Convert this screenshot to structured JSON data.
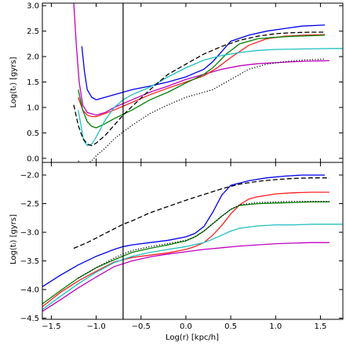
{
  "chart_data": [
    {
      "type": "line",
      "panel": "top",
      "xlabel": "",
      "ylabel": "Log(tₜ) [gyrs]",
      "xlim": [
        -1.6,
        1.75
      ],
      "ylim": [
        -0.08,
        3.05
      ],
      "xticks": [],
      "yticks": [
        0.0,
        0.5,
        1.0,
        1.5,
        2.0,
        2.5,
        3.0
      ],
      "ytick_labels": [
        "0.0",
        "0.5",
        "1.0",
        "1.5",
        "2.0",
        "2.5",
        "3.0"
      ],
      "vline_x": -0.7,
      "series": [
        {
          "color": "#0000ee",
          "dash": "solid",
          "x": [
            -1.16,
            -1.13,
            -1.1,
            -1.05,
            -1.0,
            -0.9,
            -0.8,
            -0.6,
            -0.4,
            -0.2,
            0.0,
            0.2,
            0.3,
            0.4,
            0.5,
            0.7,
            0.9,
            1.1,
            1.3,
            1.55
          ],
          "y": [
            2.2,
            1.7,
            1.35,
            1.2,
            1.15,
            1.2,
            1.25,
            1.35,
            1.42,
            1.5,
            1.6,
            1.75,
            1.9,
            2.1,
            2.3,
            2.42,
            2.5,
            2.55,
            2.6,
            2.62
          ]
        },
        {
          "color": "#c000c0",
          "dash": "solid",
          "x": [
            -1.25,
            -1.22,
            -1.19,
            -1.15,
            -1.1,
            -1.0,
            -0.9,
            -0.8,
            -0.6,
            -0.4,
            -0.2,
            0.0,
            0.2,
            0.4,
            0.6,
            0.8,
            1.0,
            1.2,
            1.4,
            1.6
          ],
          "y": [
            3.05,
            2.2,
            1.5,
            1.05,
            0.9,
            0.85,
            0.9,
            1.0,
            1.15,
            1.3,
            1.42,
            1.55,
            1.65,
            1.75,
            1.82,
            1.86,
            1.88,
            1.9,
            1.91,
            1.92
          ]
        },
        {
          "color": "#ff2020",
          "dash": "solid",
          "x": [
            -1.2,
            -1.15,
            -1.1,
            -1.05,
            -1.0,
            -0.9,
            -0.8,
            -0.6,
            -0.4,
            -0.2,
            0.0,
            0.2,
            0.35,
            0.5,
            0.7,
            0.9,
            1.1,
            1.3,
            1.55
          ],
          "y": [
            1.2,
            0.95,
            0.85,
            0.82,
            0.82,
            0.88,
            0.95,
            1.1,
            1.25,
            1.38,
            1.5,
            1.62,
            1.78,
            1.98,
            2.22,
            2.35,
            2.4,
            2.42,
            2.43
          ]
        },
        {
          "color": "#008000",
          "dash": "solid",
          "x": [
            -1.2,
            -1.15,
            -1.1,
            -1.05,
            -1.0,
            -0.9,
            -0.8,
            -0.6,
            -0.4,
            -0.2,
            0.0,
            0.2,
            0.3,
            0.45,
            0.6,
            0.8,
            1.0,
            1.2,
            1.4,
            1.55
          ],
          "y": [
            1.35,
            0.95,
            0.72,
            0.63,
            0.6,
            0.68,
            0.78,
            0.95,
            1.15,
            1.3,
            1.48,
            1.65,
            1.78,
            2.05,
            2.25,
            2.35,
            2.38,
            2.4,
            2.41,
            2.42
          ]
        },
        {
          "color": "#20c0c0",
          "dash": "solid",
          "x": [
            -1.2,
            -1.17,
            -1.14,
            -1.1,
            -1.05,
            -1.0,
            -0.9,
            -0.8,
            -0.7,
            -0.6,
            -0.4,
            -0.2,
            0.0,
            0.2,
            0.4,
            0.6,
            0.8,
            1.0,
            1.3,
            1.75
          ],
          "y": [
            0.95,
            0.65,
            0.35,
            0.25,
            0.28,
            0.42,
            0.75,
            1.0,
            1.15,
            1.25,
            1.4,
            1.6,
            1.78,
            1.93,
            2.02,
            2.08,
            2.12,
            2.14,
            2.15,
            2.16
          ]
        },
        {
          "color": "#000000",
          "dash": "dashed",
          "x": [
            -1.25,
            -1.2,
            -1.15,
            -1.1,
            -1.05,
            -1.0,
            -0.9,
            -0.8,
            -0.7,
            -0.6,
            -0.4,
            -0.2,
            0.0,
            0.2,
            0.4,
            0.6,
            0.8,
            1.0,
            1.2,
            1.4,
            1.55
          ],
          "y": [
            1.05,
            0.65,
            0.4,
            0.28,
            0.25,
            0.3,
            0.45,
            0.65,
            0.85,
            1.02,
            1.35,
            1.65,
            1.85,
            2.05,
            2.2,
            2.32,
            2.4,
            2.45,
            2.47,
            2.48,
            2.48
          ]
        },
        {
          "color": "#000000",
          "dash": "dotted",
          "x": [
            -1.2,
            -1.15,
            -1.1,
            -1.05,
            -1.0,
            -0.9,
            -0.8,
            -0.7,
            -0.6,
            -0.4,
            -0.2,
            0.0,
            0.1,
            0.3,
            0.5,
            0.7,
            0.9,
            1.1,
            1.3,
            1.55
          ],
          "y": [
            -0.05,
            -0.12,
            -0.1,
            -0.05,
            0.05,
            0.2,
            0.38,
            0.52,
            0.65,
            0.88,
            1.05,
            1.2,
            1.25,
            1.35,
            1.55,
            1.75,
            1.85,
            1.9,
            1.93,
            1.95
          ]
        }
      ]
    },
    {
      "type": "line",
      "panel": "bottom",
      "xlabel": "Log(r) [kpc/h]",
      "ylabel": "Log(tᵢ) [gyrs]",
      "xlim": [
        -1.6,
        1.75
      ],
      "ylim": [
        -4.52,
        -1.78
      ],
      "xticks": [
        -1.5,
        -1.0,
        -0.5,
        0.0,
        0.5,
        1.0,
        1.5
      ],
      "xtick_labels": [
        "−1.5",
        "−1.0",
        "−0.5",
        "0.0",
        "0.5",
        "1.0",
        "1.5"
      ],
      "yticks": [
        -4.5,
        -4.0,
        -3.5,
        -3.0,
        -2.5,
        -2.0
      ],
      "ytick_labels": [
        "−4.5",
        "−4.0",
        "−3.5",
        "−3.0",
        "−2.5",
        "−2.0"
      ],
      "vline_x": -0.7,
      "series": [
        {
          "color": "#0000ee",
          "dash": "solid",
          "x": [
            -1.6,
            -1.4,
            -1.2,
            -1.0,
            -0.8,
            -0.7,
            -0.6,
            -0.4,
            -0.2,
            0.0,
            0.1,
            0.2,
            0.3,
            0.4,
            0.5,
            0.7,
            0.9,
            1.1,
            1.3,
            1.55
          ],
          "y": [
            -3.95,
            -3.75,
            -3.57,
            -3.42,
            -3.3,
            -3.25,
            -3.22,
            -3.18,
            -3.14,
            -3.08,
            -3.02,
            -2.9,
            -2.65,
            -2.35,
            -2.18,
            -2.1,
            -2.05,
            -2.02,
            -2.0,
            -2.0
          ]
        },
        {
          "color": "#c000c0",
          "dash": "solid",
          "x": [
            -1.6,
            -1.4,
            -1.2,
            -1.0,
            -0.8,
            -0.6,
            -0.4,
            -0.2,
            0.0,
            0.2,
            0.4,
            0.6,
            0.8,
            1.0,
            1.2,
            1.4,
            1.6
          ],
          "y": [
            -4.38,
            -4.18,
            -3.97,
            -3.78,
            -3.6,
            -3.5,
            -3.43,
            -3.38,
            -3.34,
            -3.3,
            -3.27,
            -3.24,
            -3.22,
            -3.2,
            -3.19,
            -3.18,
            -3.18
          ]
        },
        {
          "color": "#ff2020",
          "dash": "solid",
          "x": [
            -1.6,
            -1.4,
            -1.2,
            -1.0,
            -0.8,
            -0.6,
            -0.4,
            -0.2,
            0.0,
            0.1,
            0.2,
            0.3,
            0.4,
            0.5,
            0.6,
            0.7,
            0.8,
            1.0,
            1.2,
            1.4,
            1.6
          ],
          "y": [
            -4.3,
            -4.05,
            -3.85,
            -3.68,
            -3.52,
            -3.44,
            -3.4,
            -3.36,
            -3.3,
            -3.25,
            -3.18,
            -3.05,
            -2.88,
            -2.68,
            -2.52,
            -2.42,
            -2.38,
            -2.33,
            -2.31,
            -2.3,
            -2.3
          ]
        },
        {
          "color": "#008000",
          "dash": "solid",
          "x": [
            -1.6,
            -1.4,
            -1.2,
            -1.0,
            -0.8,
            -0.6,
            -0.4,
            -0.2,
            0.0,
            0.1,
            0.2,
            0.3,
            0.4,
            0.5,
            0.6,
            0.8,
            1.0,
            1.2,
            1.4,
            1.6
          ],
          "y": [
            -4.25,
            -4.02,
            -3.8,
            -3.62,
            -3.48,
            -3.35,
            -3.28,
            -3.22,
            -3.15,
            -3.08,
            -2.98,
            -2.85,
            -2.72,
            -2.6,
            -2.53,
            -2.5,
            -2.49,
            -2.48,
            -2.47,
            -2.47
          ]
        },
        {
          "color": "#20c0c0",
          "dash": "solid",
          "x": [
            -1.6,
            -1.4,
            -1.2,
            -1.0,
            -0.8,
            -0.6,
            -0.4,
            -0.2,
            0.0,
            0.2,
            0.3,
            0.4,
            0.5,
            0.6,
            0.8,
            1.0,
            1.2,
            1.4,
            1.75
          ],
          "y": [
            -4.35,
            -4.12,
            -3.9,
            -3.7,
            -3.53,
            -3.42,
            -3.35,
            -3.3,
            -3.25,
            -3.18,
            -3.12,
            -3.05,
            -2.98,
            -2.93,
            -2.89,
            -2.87,
            -2.87,
            -2.86,
            -2.86
          ]
        },
        {
          "color": "#000000",
          "dash": "dashed",
          "x": [
            -1.25,
            -1.1,
            -1.0,
            -0.9,
            -0.8,
            -0.7,
            -0.6,
            -0.4,
            -0.2,
            0.0,
            0.2,
            0.4,
            0.6,
            0.8,
            1.0,
            1.2,
            1.4,
            1.6
          ],
          "y": [
            -3.28,
            -3.18,
            -3.1,
            -3.02,
            -2.94,
            -2.86,
            -2.8,
            -2.66,
            -2.55,
            -2.44,
            -2.34,
            -2.24,
            -2.16,
            -2.11,
            -2.08,
            -2.06,
            -2.05,
            -2.05
          ]
        },
        {
          "color": "#000000",
          "dash": "dotted",
          "x": [
            -1.2,
            -1.0,
            -0.8,
            -0.7,
            -0.6,
            -0.4,
            -0.2,
            0.0,
            0.1,
            0.2,
            0.3,
            0.4,
            0.5,
            0.6,
            0.8,
            1.0,
            1.2,
            1.4,
            1.6
          ],
          "y": [
            -3.8,
            -3.62,
            -3.45,
            -3.38,
            -3.32,
            -3.25,
            -3.2,
            -3.14,
            -3.08,
            -2.98,
            -2.85,
            -2.72,
            -2.6,
            -2.52,
            -2.48,
            -2.47,
            -2.46,
            -2.46,
            -2.46
          ]
        }
      ]
    }
  ]
}
